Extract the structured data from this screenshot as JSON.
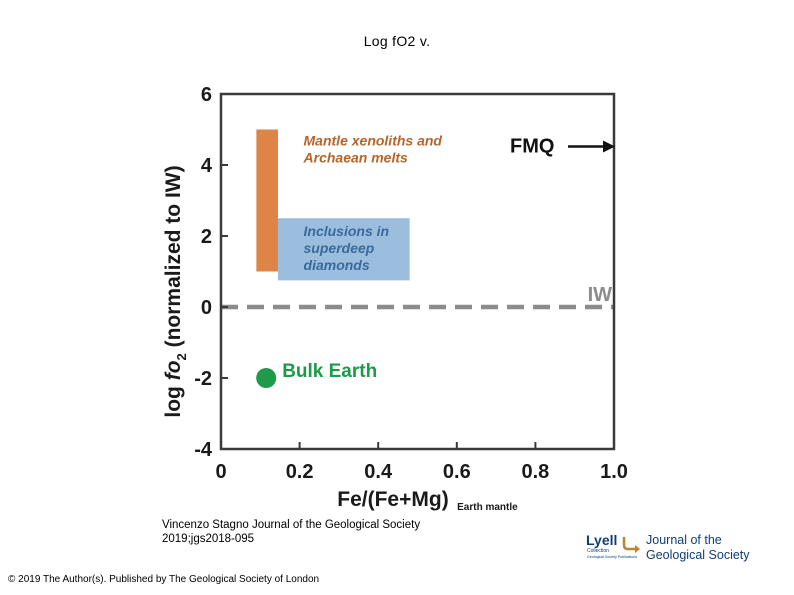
{
  "slide": {
    "title": "Log fO2 v.",
    "citation": "Vincenzo Stagno Journal of the Geological Society 2019;jgs2018-095",
    "copyright": "© 2019 The Author(s). Published by The Geological Society of London"
  },
  "logo": {
    "lyell": "Lyell",
    "collection": "Collection",
    "tagline": "Geological Society Publications",
    "journal_line1": "Journal of the",
    "journal_line2": "Geological Society"
  },
  "chart_data": {
    "type": "scatter",
    "xlabel_main": "Fe/(Fe+Mg)",
    "xlabel_sub": "Earth mantle",
    "ylabel_prefix": "log ",
    "ylabel_var": "fo",
    "ylabel_subscript": "2",
    "ylabel_suffix": " (normalized to IW)",
    "xlim": [
      0,
      1.0
    ],
    "ylim": [
      -4,
      6
    ],
    "xticks": [
      "0",
      "0.2",
      "0.4",
      "0.6",
      "0.8",
      "1.0"
    ],
    "yticks": [
      "6",
      "4",
      "2",
      "0",
      "-2",
      "-4"
    ],
    "xtick_values": [
      0,
      0.2,
      0.4,
      0.6,
      0.8,
      1.0
    ],
    "ytick_values": [
      6,
      4,
      2,
      0,
      -2,
      -4
    ],
    "grid": false,
    "regions": [
      {
        "name": "Mantle xenoliths and Archaean melts",
        "label_lines": [
          "Mantle xenoliths and",
          "Archaean melts"
        ],
        "x_range": [
          0.09,
          0.145
        ],
        "y_range": [
          1.0,
          5.0
        ],
        "color": "#dc7a37",
        "label_color": "#b5652b",
        "label_anchor": [
          0.21,
          4.55
        ]
      },
      {
        "name": "Inclusions in superdeep diamonds",
        "label_lines": [
          "Inclusions in",
          "superdeep",
          "diamonds"
        ],
        "x_range": [
          0.145,
          0.48
        ],
        "y_range": [
          0.75,
          2.5
        ],
        "color": "#92b8dc",
        "label_color": "#3a6a99",
        "label_anchor": [
          0.21,
          2.0
        ]
      }
    ],
    "reference_lines": [
      {
        "name": "IW",
        "label": "IW",
        "y": 0,
        "style": "dashed",
        "color": "#8c8c8c"
      }
    ],
    "annotations": [
      {
        "label": "FMQ",
        "y": 4.55,
        "arrow": "right",
        "color": "#111111"
      }
    ],
    "points": [
      {
        "name": "Bulk Earth",
        "label": "Bulk Earth",
        "x": 0.115,
        "y": -2.0,
        "color": "#1e9a4a"
      }
    ]
  }
}
